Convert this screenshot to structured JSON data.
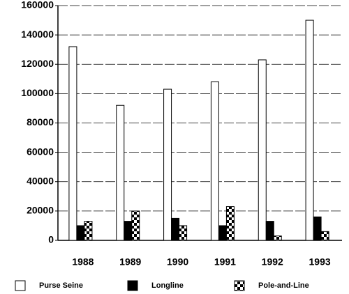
{
  "chart_data": {
    "type": "bar",
    "categories": [
      "1988",
      "1989",
      "1990",
      "1991",
      "1992",
      "1993"
    ],
    "series": [
      {
        "name": "Purse Seine",
        "color": "#ffffff",
        "values": [
          132000,
          92000,
          103000,
          108000,
          123000,
          150000
        ]
      },
      {
        "name": "Longline",
        "color": "#000000",
        "values": [
          10000,
          13000,
          15000,
          10000,
          13000,
          16000
        ]
      },
      {
        "name": "Pole-and-Line",
        "color": "#000000",
        "pattern": "checker",
        "values": [
          13000,
          20000,
          10000,
          23000,
          3000,
          6000
        ]
      }
    ],
    "ylim": [
      0,
      160000
    ],
    "yticks": [
      0,
      20000,
      40000,
      60000,
      80000,
      100000,
      120000,
      140000,
      160000
    ],
    "grid": true,
    "legend": "bottom"
  }
}
